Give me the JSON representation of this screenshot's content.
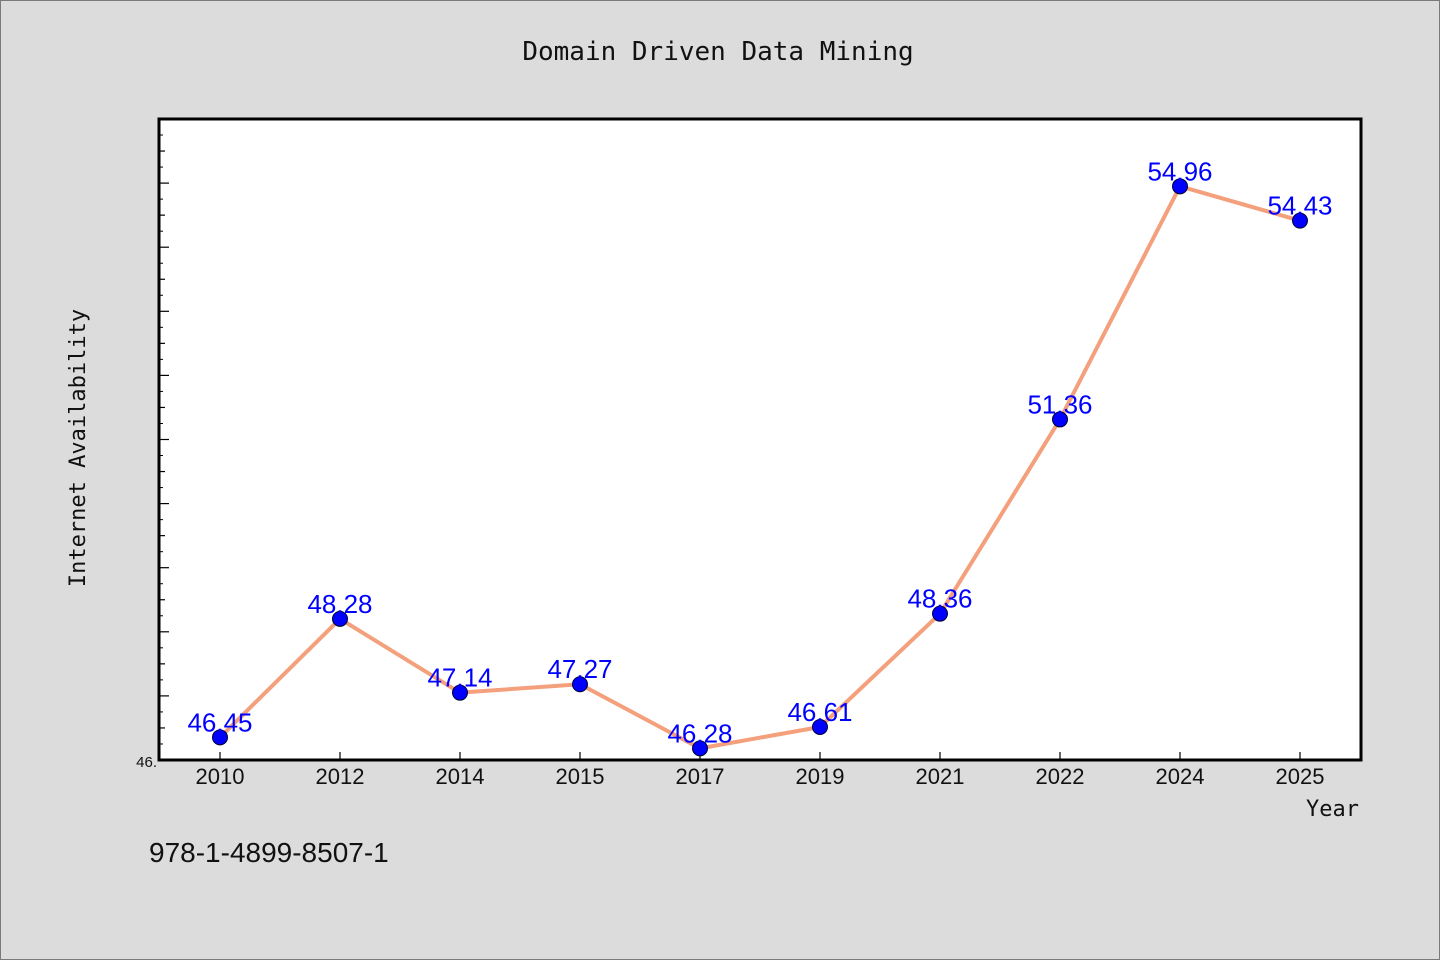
{
  "chart_data": {
    "type": "line",
    "title": "Domain Driven Data Mining",
    "xlabel": "Year",
    "ylabel": "Internet Availability",
    "categories": [
      "2010",
      "2012",
      "2014",
      "2015",
      "2017",
      "2019",
      "2021",
      "2022",
      "2024",
      "2025"
    ],
    "series": [
      {
        "values": [
          46.45,
          48.28,
          47.14,
          47.27,
          46.28,
          46.61,
          48.36,
          51.36,
          54.96,
          54.43
        ],
        "labels": [
          "46.45",
          "48.28",
          "47.14",
          "47.27",
          "46.28",
          "46.61",
          "48.36",
          "51.36",
          "54.96",
          "54.43"
        ],
        "line_color": "#f4a07c",
        "marker_color": "#0000ff"
      }
    ],
    "ylim": [
      46.1,
      56.0
    ],
    "y_tick_label": "46.",
    "grid": false,
    "legend": "none"
  },
  "annotation": {
    "isbn": "978-1-4899-8507-1"
  },
  "colors": {
    "background": "#dcdcdc",
    "plot_background": "#ffffff",
    "line": "#f4a07c",
    "marker": "#0000ff",
    "data_label": "#0000ff"
  }
}
